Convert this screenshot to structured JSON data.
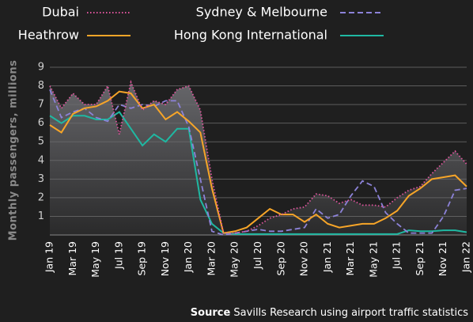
{
  "chart_data": {
    "type": "line",
    "y_label": "Monthly passengers, millions",
    "source_label": "Source",
    "source": "Savills Research using airport traffic statistics",
    "categories": [
      "Jan 19",
      null,
      "Mar 19",
      null,
      "May 19",
      null,
      "Jul 19",
      null,
      "Sep 19",
      null,
      "Nov 19",
      null,
      "Jan 20",
      null,
      "Mar 20",
      null,
      "May 20",
      null,
      "Jul 20",
      null,
      "Sep 20",
      null,
      "Nov 20",
      null,
      "Jan 21",
      null,
      "Mar 21",
      null,
      "May 21",
      null,
      "Jul 21",
      null,
      "Sep 21",
      null,
      "Nov 21",
      null,
      "Jan 22"
    ],
    "ylim": [
      0,
      9
    ],
    "yticks": [
      1,
      2,
      3,
      4,
      5,
      6,
      7,
      8,
      9
    ],
    "grid": true,
    "area_under_first_series": true,
    "area_color": "#6a6a6e",
    "series": [
      {
        "name": "Dubai",
        "color": "#e0559e",
        "style": "dotted",
        "values": [
          8.0,
          6.8,
          7.6,
          7.0,
          7.0,
          8.0,
          5.4,
          8.2,
          6.7,
          7.2,
          7.0,
          7.8,
          8.0,
          6.7,
          3.0,
          0.1,
          0.1,
          0.2,
          0.5,
          0.9,
          1.1,
          1.4,
          1.5,
          2.2,
          2.1,
          1.7,
          1.9,
          1.6,
          1.6,
          1.5,
          2.0,
          2.4,
          2.6,
          3.3,
          3.9,
          4.5,
          3.8
        ]
      },
      {
        "name": "Sydney & Melbourne",
        "color": "#8c82d8",
        "style": "dashed",
        "values": [
          7.8,
          6.3,
          6.6,
          6.8,
          6.3,
          6.1,
          7.0,
          6.8,
          7.0,
          6.9,
          7.2,
          7.2,
          5.8,
          3.0,
          0.2,
          0.0,
          0.1,
          0.2,
          0.3,
          0.2,
          0.2,
          0.3,
          0.4,
          1.4,
          0.9,
          1.1,
          2.1,
          2.9,
          2.6,
          1.2,
          0.6,
          0.1,
          0.1,
          0.1,
          1.0,
          2.4,
          2.5
        ]
      },
      {
        "name": "Heathrow",
        "color": "#f7a528",
        "style": "solid",
        "values": [
          5.9,
          5.5,
          6.5,
          6.8,
          6.9,
          7.2,
          7.7,
          7.6,
          6.8,
          7.0,
          6.2,
          6.6,
          6.1,
          5.5,
          2.5,
          0.1,
          0.2,
          0.4,
          0.9,
          1.4,
          1.1,
          1.1,
          0.7,
          1.1,
          0.6,
          0.4,
          0.5,
          0.6,
          0.6,
          0.9,
          1.3,
          2.1,
          2.5,
          3.0,
          3.1,
          3.2,
          2.6
        ]
      },
      {
        "name": "Hong Kong International",
        "color": "#1fb8a2",
        "style": "solid",
        "values": [
          6.4,
          6.0,
          6.4,
          6.4,
          6.2,
          6.2,
          6.6,
          5.7,
          4.8,
          5.4,
          5.0,
          5.7,
          5.7,
          1.9,
          0.6,
          0.1,
          0.05,
          0.05,
          0.05,
          0.05,
          0.05,
          0.05,
          0.05,
          0.05,
          0.05,
          0.05,
          0.05,
          0.05,
          0.05,
          0.05,
          0.05,
          0.25,
          0.2,
          0.2,
          0.25,
          0.25,
          0.15
        ]
      }
    ]
  }
}
